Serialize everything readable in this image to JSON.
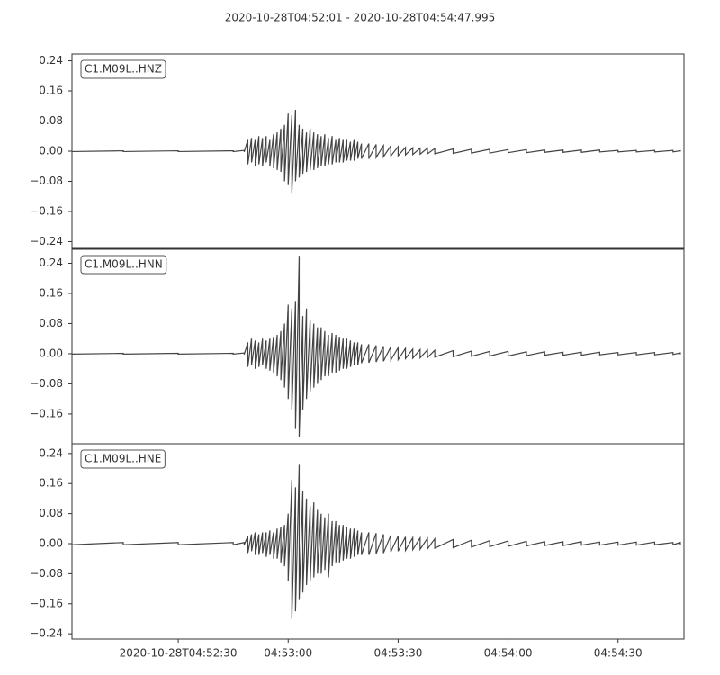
{
  "chart_data": {
    "type": "seismogram",
    "title": "2020-10-28T04:52:01  -  2020-10-28T04:54:47.995",
    "x": [
      "04:52:01",
      "04:52:15",
      "04:52:30",
      "04:52:45",
      "04:52:48",
      "04:52:49",
      "04:52:50",
      "04:52:51",
      "04:52:52",
      "04:52:53",
      "04:52:54",
      "04:52:55",
      "04:52:56",
      "04:52:57",
      "04:52:58",
      "04:52:59",
      "04:53:00",
      "04:53:01",
      "04:53:02",
      "04:53:03",
      "04:53:04",
      "04:53:05",
      "04:53:06",
      "04:53:07",
      "04:53:08",
      "04:53:09",
      "04:53:10",
      "04:53:11",
      "04:53:12",
      "04:53:13",
      "04:53:14",
      "04:53:15",
      "04:53:16",
      "04:53:17",
      "04:53:18",
      "04:53:19",
      "04:53:20",
      "04:53:22",
      "04:53:24",
      "04:53:26",
      "04:53:28",
      "04:53:30",
      "04:53:32",
      "04:53:34",
      "04:53:36",
      "04:53:38",
      "04:53:40",
      "04:53:45",
      "04:53:50",
      "04:53:55",
      "04:54:00",
      "04:54:05",
      "04:54:10",
      "04:54:15",
      "04:54:20",
      "04:54:25",
      "04:54:30",
      "04:54:35",
      "04:54:40",
      "04:54:45",
      "04:54:47"
    ],
    "xlim": [
      "04:52:01",
      "04:54:47.995"
    ],
    "xticks": [
      {
        "value": "04:52:30",
        "label": "2020-10-28T04:52:30"
      },
      "04:53:00",
      "04:53:30",
      "04:54:00",
      "04:54:30"
    ],
    "series": [
      {
        "name": "C1.M09L..HNZ",
        "color": "#444444",
        "ylim": [
          -0.258,
          0.258
        ],
        "yticks": [
          0.24,
          0.16,
          0.08,
          {
            "value": 0,
            "label": "0.00"
          },
          {
            "value": -0.08,
            "label": "−0.08"
          },
          {
            "value": -0.16,
            "label": "−0.16"
          },
          {
            "value": -0.24,
            "label": "−0.24"
          }
        ],
        "upper": [
          0.001,
          0.001,
          0.001,
          0.001,
          0.002,
          0.03,
          0.035,
          0.03,
          0.04,
          0.035,
          0.04,
          0.03,
          0.045,
          0.05,
          0.06,
          0.07,
          0.1,
          0.095,
          0.11,
          0.07,
          0.06,
          0.05,
          0.06,
          0.05,
          0.045,
          0.04,
          0.045,
          0.035,
          0.04,
          0.03,
          0.035,
          0.03,
          0.03,
          0.025,
          0.03,
          0.025,
          0.02,
          0.02,
          0.018,
          0.015,
          0.014,
          0.012,
          0.01,
          0.009,
          0.008,
          0.008,
          0.007,
          0.006,
          0.005,
          0.005,
          0.004,
          0.004,
          0.003,
          0.003,
          0.003,
          0.003,
          0.002,
          0.002,
          0.002,
          0.002,
          0.001
        ],
        "lower": [
          -0.001,
          -0.001,
          -0.001,
          -0.001,
          -0.002,
          -0.035,
          -0.03,
          -0.04,
          -0.035,
          -0.04,
          -0.03,
          -0.04,
          -0.045,
          -0.05,
          -0.055,
          -0.08,
          -0.09,
          -0.11,
          -0.08,
          -0.07,
          -0.06,
          -0.055,
          -0.05,
          -0.05,
          -0.045,
          -0.04,
          -0.04,
          -0.035,
          -0.035,
          -0.03,
          -0.03,
          -0.03,
          -0.025,
          -0.025,
          -0.025,
          -0.02,
          -0.02,
          -0.02,
          -0.017,
          -0.015,
          -0.013,
          -0.012,
          -0.01,
          -0.009,
          -0.008,
          -0.007,
          -0.007,
          -0.006,
          -0.005,
          -0.005,
          -0.004,
          -0.004,
          -0.003,
          -0.003,
          -0.003,
          -0.002,
          -0.002,
          -0.002,
          -0.002,
          -0.002,
          -0.001
        ]
      },
      {
        "name": "C1.M09L..HNN",
        "color": "#444444",
        "ylim": [
          -0.239,
          0.277
        ],
        "yticks": [
          0.24,
          0.16,
          0.08,
          {
            "value": 0,
            "label": "0.00"
          },
          {
            "value": -0.08,
            "label": "−0.08"
          },
          {
            "value": -0.16,
            "label": "−0.16"
          }
        ],
        "upper": [
          0.001,
          0.001,
          0.001,
          0.001,
          0.002,
          0.03,
          0.04,
          0.035,
          0.03,
          0.04,
          0.035,
          0.04,
          0.045,
          0.05,
          0.06,
          0.08,
          0.13,
          0.12,
          0.14,
          0.26,
          0.1,
          0.12,
          0.09,
          0.08,
          0.07,
          0.07,
          0.06,
          0.05,
          0.055,
          0.05,
          0.045,
          0.04,
          0.04,
          0.035,
          0.03,
          0.03,
          0.025,
          0.025,
          0.022,
          0.02,
          0.018,
          0.016,
          0.014,
          0.012,
          0.011,
          0.01,
          0.009,
          0.008,
          0.007,
          0.006,
          0.006,
          0.005,
          0.005,
          0.004,
          0.004,
          0.004,
          0.003,
          0.003,
          0.003,
          0.003,
          0.002
        ],
        "lower": [
          -0.001,
          -0.001,
          -0.001,
          -0.001,
          -0.002,
          -0.035,
          -0.03,
          -0.04,
          -0.035,
          -0.03,
          -0.04,
          -0.045,
          -0.05,
          -0.06,
          -0.07,
          -0.09,
          -0.12,
          -0.15,
          -0.2,
          -0.22,
          -0.15,
          -0.12,
          -0.1,
          -0.09,
          -0.08,
          -0.07,
          -0.06,
          -0.06,
          -0.05,
          -0.05,
          -0.045,
          -0.04,
          -0.04,
          -0.035,
          -0.03,
          -0.03,
          -0.025,
          -0.024,
          -0.022,
          -0.02,
          -0.017,
          -0.016,
          -0.013,
          -0.012,
          -0.011,
          -0.01,
          -0.009,
          -0.008,
          -0.007,
          -0.006,
          -0.006,
          -0.005,
          -0.004,
          -0.004,
          -0.004,
          -0.003,
          -0.003,
          -0.003,
          -0.003,
          -0.002,
          -0.002
        ]
      },
      {
        "name": "C1.M09L..HNE",
        "color": "#444444",
        "ylim": [
          -0.254,
          0.266
        ],
        "yticks": [
          0.24,
          0.16,
          0.08,
          {
            "value": 0,
            "label": "0.00"
          },
          {
            "value": -0.08,
            "label": "−0.08"
          },
          {
            "value": -0.16,
            "label": "−0.16"
          },
          {
            "value": -0.24,
            "label": "−0.24"
          }
        ],
        "upper": [
          0.003,
          0.003,
          0.003,
          0.003,
          0.003,
          0.02,
          0.025,
          0.03,
          0.025,
          0.03,
          0.03,
          0.035,
          0.03,
          0.04,
          0.045,
          0.05,
          0.08,
          0.17,
          0.15,
          0.21,
          0.14,
          0.12,
          0.1,
          0.11,
          0.09,
          0.08,
          0.07,
          0.08,
          0.06,
          0.06,
          0.05,
          0.05,
          0.045,
          0.04,
          0.04,
          0.035,
          0.03,
          0.03,
          0.028,
          0.025,
          0.022,
          0.02,
          0.018,
          0.016,
          0.015,
          0.014,
          0.013,
          0.011,
          0.009,
          0.008,
          0.007,
          0.006,
          0.005,
          0.005,
          0.005,
          0.004,
          0.004,
          0.004,
          0.004,
          0.003,
          0.003
        ],
        "lower": [
          -0.003,
          -0.003,
          -0.003,
          -0.003,
          -0.003,
          -0.025,
          -0.02,
          -0.03,
          -0.03,
          -0.025,
          -0.035,
          -0.03,
          -0.04,
          -0.04,
          -0.05,
          -0.06,
          -0.1,
          -0.2,
          -0.18,
          -0.15,
          -0.13,
          -0.11,
          -0.1,
          -0.09,
          -0.08,
          -0.08,
          -0.07,
          -0.09,
          -0.06,
          -0.05,
          -0.05,
          -0.045,
          -0.04,
          -0.04,
          -0.035,
          -0.03,
          -0.03,
          -0.03,
          -0.027,
          -0.025,
          -0.022,
          -0.02,
          -0.018,
          -0.016,
          -0.015,
          -0.014,
          -0.012,
          -0.011,
          -0.009,
          -0.008,
          -0.007,
          -0.006,
          -0.005,
          -0.005,
          -0.004,
          -0.004,
          -0.004,
          -0.004,
          -0.003,
          -0.003,
          -0.003
        ]
      }
    ]
  }
}
